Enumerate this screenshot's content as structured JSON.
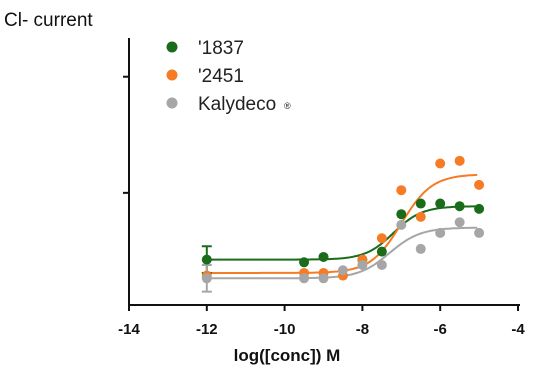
{
  "chart_data": {
    "type": "scatter",
    "ylabel": "Cl- current",
    "xlabel": "log([conc]) M",
    "xlim": [
      -14,
      -4
    ],
    "x_ticks": [
      "-14",
      "-12",
      "-10",
      "-8",
      "-6",
      "-4"
    ],
    "ylim": [
      0,
      1
    ],
    "y_ticks_labeled": false,
    "legend_position": "top-left",
    "series": [
      {
        "name": "'1837",
        "color": "#1a6b1a",
        "points": [
          [
            -12,
            0.17
          ],
          [
            -9.5,
            0.16
          ],
          [
            -9,
            0.18
          ],
          [
            -8,
            0.17
          ],
          [
            -7.5,
            0.2
          ],
          [
            -7,
            0.34
          ],
          [
            -6.5,
            0.38
          ],
          [
            -6,
            0.38
          ],
          [
            -5.5,
            0.37
          ],
          [
            -5,
            0.36
          ]
        ],
        "error": [
          [
            -12,
            0.05
          ]
        ],
        "fit": {
          "bottom": 0.17,
          "top": 0.37,
          "logEC50": -7.2,
          "hill": 1.2
        }
      },
      {
        "name": "'2451",
        "color": "#f57c24",
        "points": [
          [
            -12,
            0.11
          ],
          [
            -9.5,
            0.12
          ],
          [
            -9,
            0.12
          ],
          [
            -8.5,
            0.11
          ],
          [
            -8,
            0.17
          ],
          [
            -7.5,
            0.25
          ],
          [
            -7,
            0.43
          ],
          [
            -6.5,
            0.33
          ],
          [
            -6,
            0.53
          ],
          [
            -5.5,
            0.54
          ],
          [
            -5,
            0.45
          ]
        ],
        "fit": {
          "bottom": 0.12,
          "top": 0.49,
          "logEC50": -7.0,
          "hill": 1.1
        }
      },
      {
        "name": "Kalydeco",
        "name_mark": "®",
        "color": "#a6a6a6",
        "points": [
          [
            -12,
            0.1
          ],
          [
            -9.5,
            0.1
          ],
          [
            -9,
            0.1
          ],
          [
            -8.5,
            0.13
          ],
          [
            -8,
            0.15
          ],
          [
            -7.5,
            0.15
          ],
          [
            -7,
            0.3
          ],
          [
            -6.5,
            0.21
          ],
          [
            -6,
            0.27
          ],
          [
            -5.5,
            0.31
          ],
          [
            -5,
            0.27
          ]
        ],
        "error": [
          [
            -12,
            0.05
          ]
        ],
        "fit": {
          "bottom": 0.1,
          "top": 0.29,
          "logEC50": -7.3,
          "hill": 1.1
        }
      }
    ]
  }
}
